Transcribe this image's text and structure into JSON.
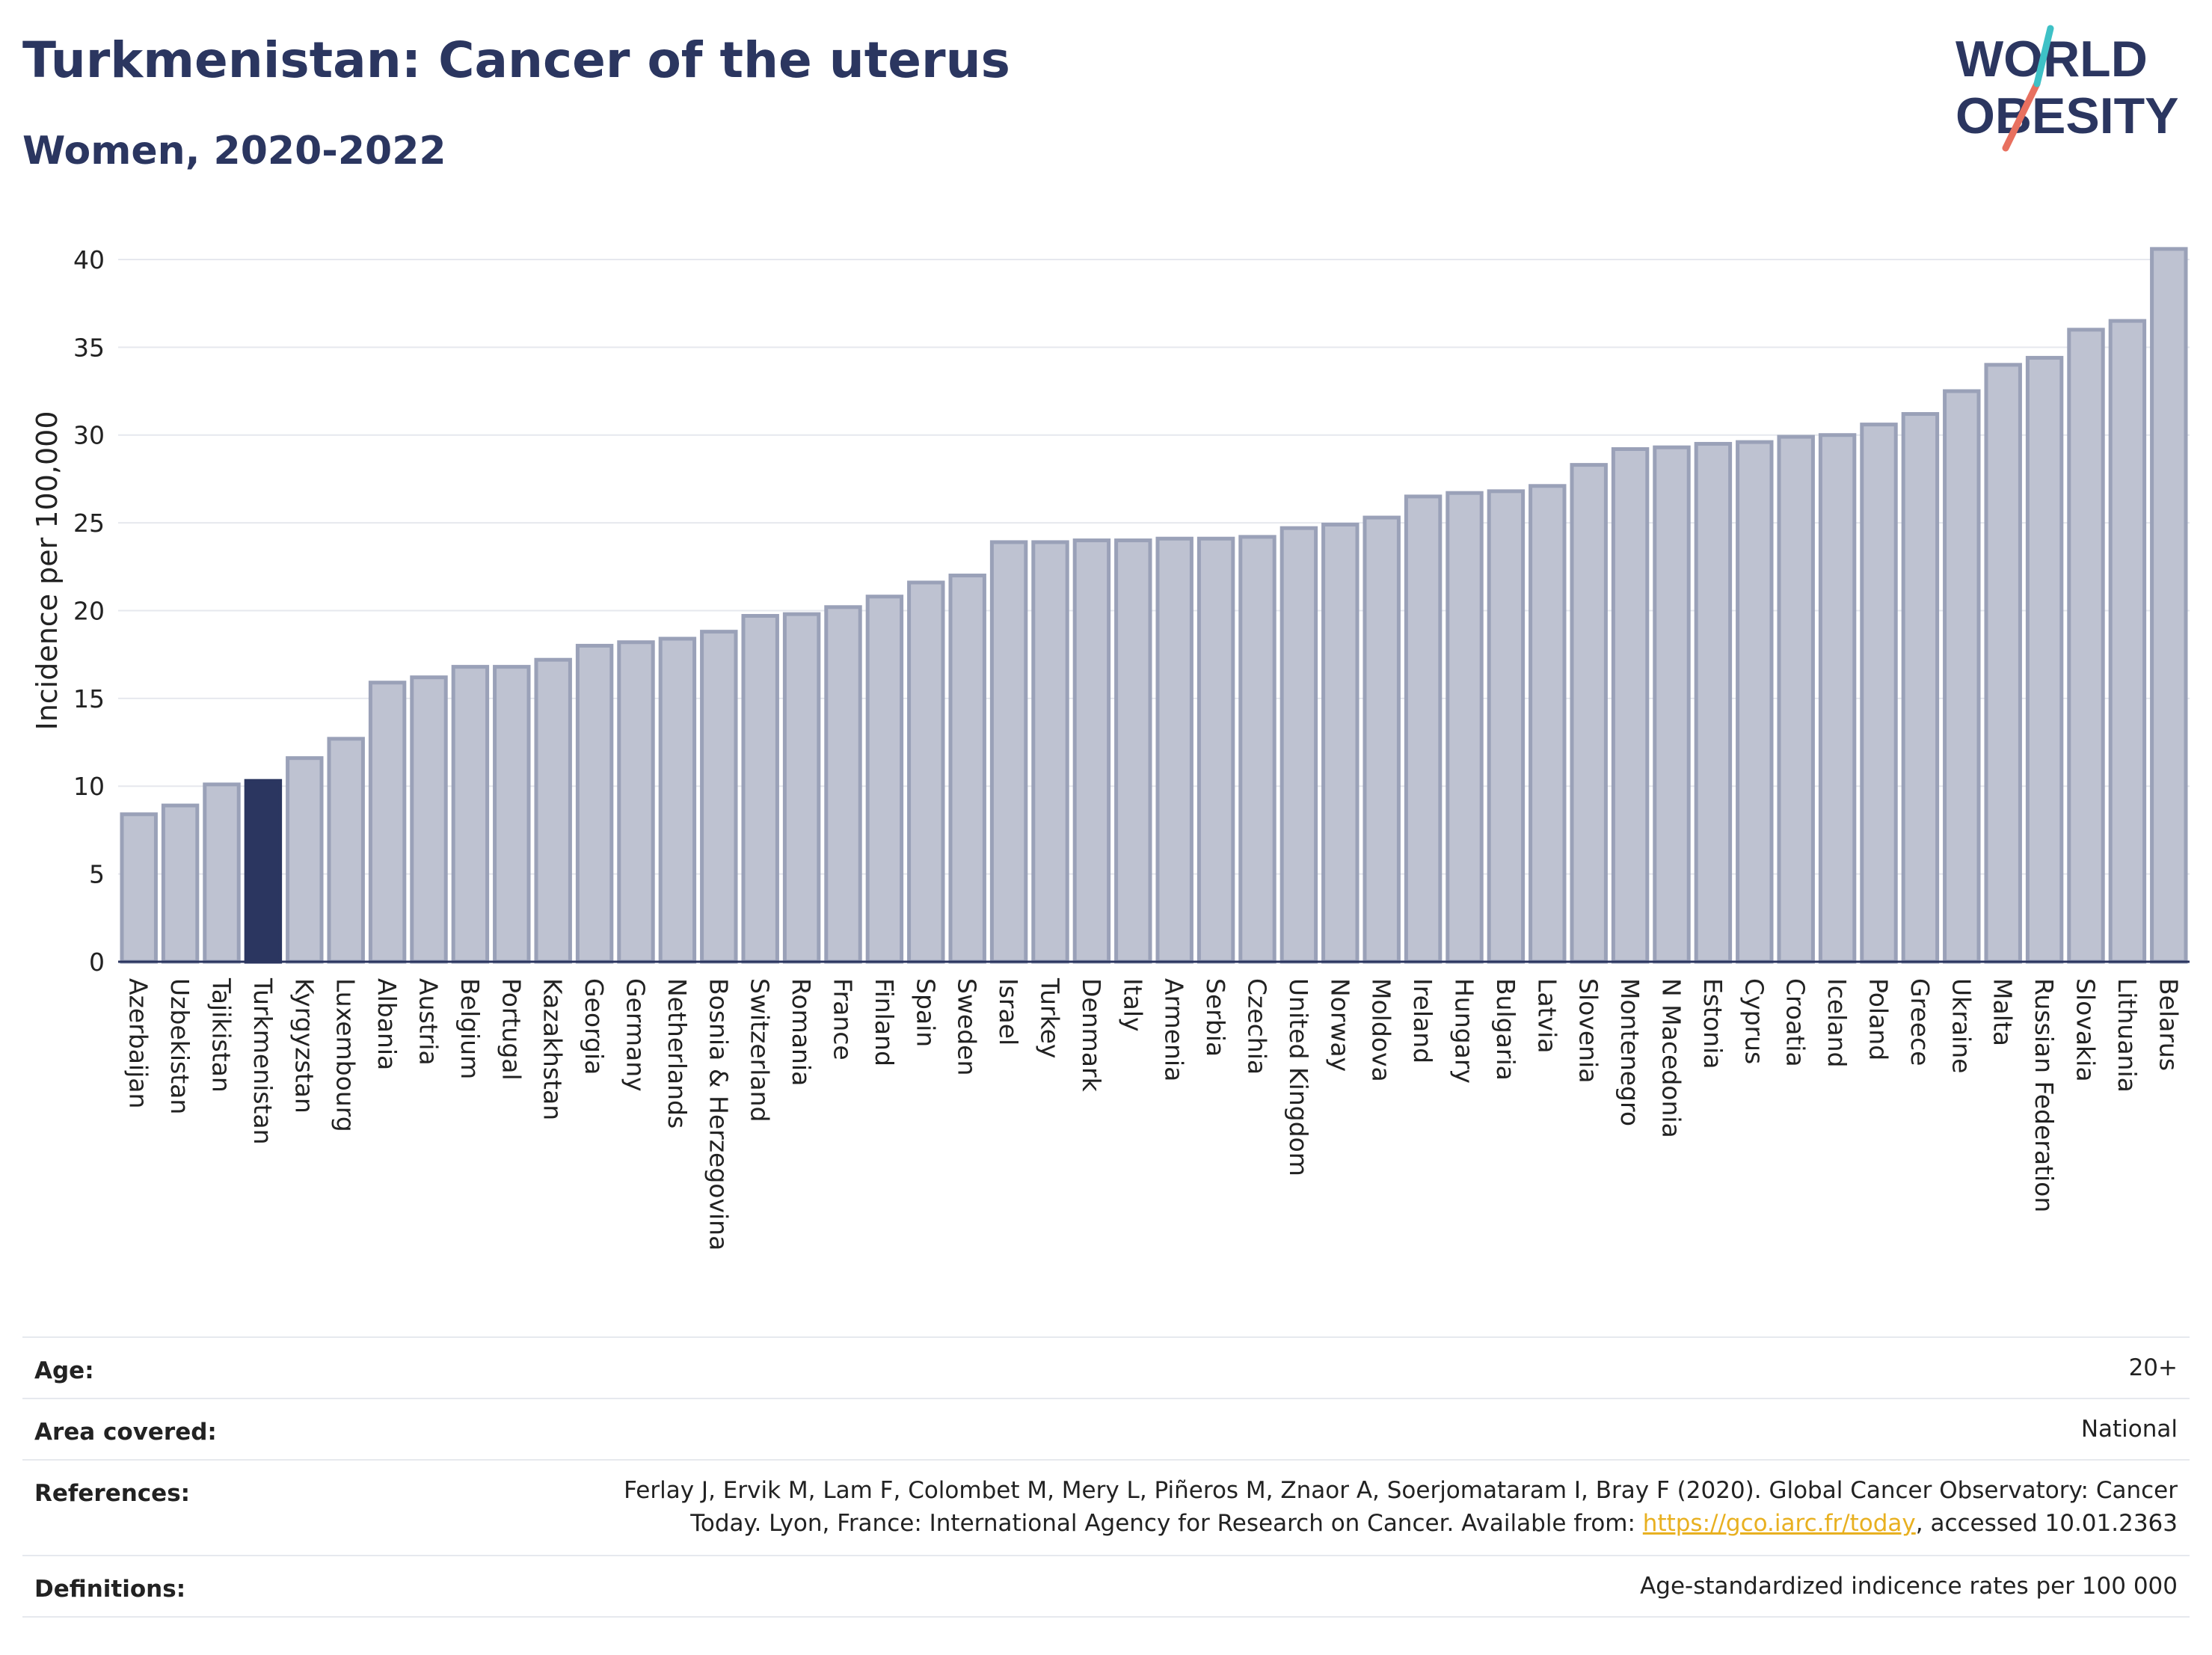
{
  "header": {
    "title": "Turkmenistan: Cancer of the uterus",
    "subtitle": "Women, 2020-2022"
  },
  "logo": {
    "line1": "WORLD",
    "line2": "OBESITY"
  },
  "colors": {
    "highlight": "#2b3660",
    "bar": "#bec2d1",
    "bar_edge": "#9aa1b8",
    "grid": "#e6e8ee",
    "link": "#e8b020"
  },
  "chart_data": {
    "type": "bar",
    "ylabel": "Incidence per 100,000",
    "ylim": [
      0,
      42
    ],
    "yticks": [
      0,
      5,
      10,
      15,
      20,
      25,
      30,
      35,
      40
    ],
    "grid": true,
    "highlight": "Turkmenistan",
    "categories": [
      "Azerbaijan",
      "Uzbekistan",
      "Tajikistan",
      "Turkmenistan",
      "Kyrgyzstan",
      "Luxembourg",
      "Albania",
      "Austria",
      "Belgium",
      "Portugal",
      "Kazakhstan",
      "Georgia",
      "Germany",
      "Netherlands",
      "Bosnia & Herzegovina",
      "Switzerland",
      "Romania",
      "France",
      "Finland",
      "Spain",
      "Sweden",
      "Israel",
      "Turkey",
      "Denmark",
      "Italy",
      "Armenia",
      "Serbia",
      "Czechia",
      "United Kingdom",
      "Norway",
      "Moldova",
      "Ireland",
      "Hungary",
      "Bulgaria",
      "Latvia",
      "Slovenia",
      "Montenegro",
      "N Macedonia",
      "Estonia",
      "Cyprus",
      "Croatia",
      "Iceland",
      "Poland",
      "Greece",
      "Ukraine",
      "Malta",
      "Russian Federation",
      "Slovakia",
      "Lithuania",
      "Belarus"
    ],
    "values": [
      8.4,
      8.9,
      10.1,
      10.3,
      11.6,
      12.7,
      15.9,
      16.2,
      16.8,
      16.8,
      17.2,
      18.0,
      18.2,
      18.4,
      18.8,
      19.7,
      19.8,
      20.2,
      20.8,
      21.6,
      22.0,
      23.9,
      23.9,
      24.0,
      24.0,
      24.1,
      24.1,
      24.2,
      24.7,
      24.9,
      25.3,
      26.5,
      26.7,
      26.8,
      27.1,
      28.3,
      29.2,
      29.3,
      29.5,
      29.6,
      29.9,
      30.0,
      30.6,
      31.2,
      32.5,
      34.0,
      34.4,
      36.0,
      36.5,
      40.6
    ]
  },
  "details": {
    "age_label": "Age:",
    "age_value": "20+",
    "area_label": "Area covered:",
    "area_value": "National",
    "references_label": "References:",
    "references_text_1": "Ferlay J, Ervik M, Lam F, Colombet M, Mery L, Piñeros M, Znaor A, Soerjomataram I, Bray F (2020). Global Cancer Observatory: Cancer Today. Lyon, France: International Agency for Research on Cancer. Available from: ",
    "references_link": "https://gco.iarc.fr/today",
    "references_text_2": ", accessed 10.01.2363",
    "definitions_label": "Definitions:",
    "definitions_value": "Age-standardized indicence rates per 100 000"
  }
}
